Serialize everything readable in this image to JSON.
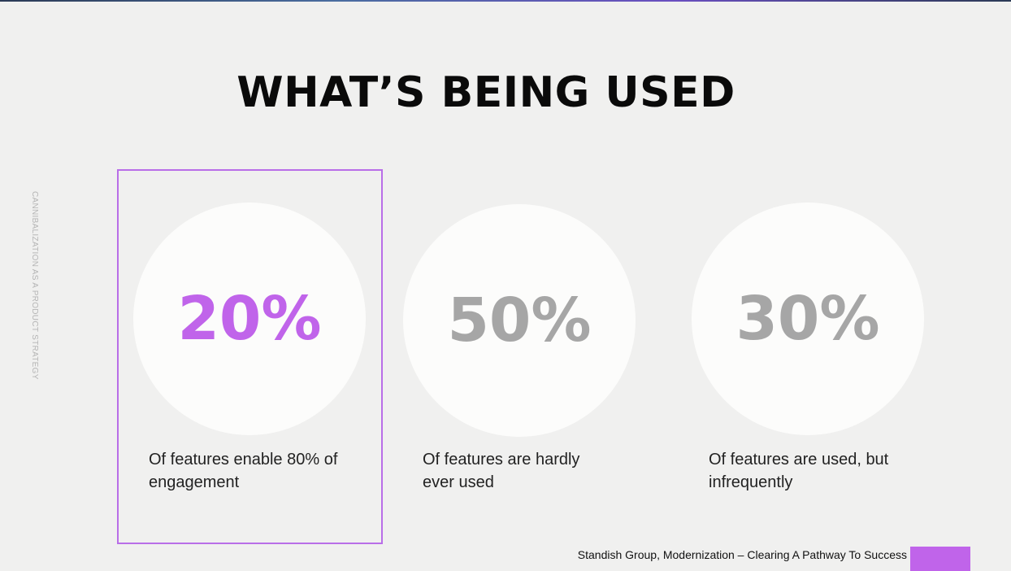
{
  "header": {
    "title": "WHAT’S BEING USED"
  },
  "side_label": "CANNIBALIZATION AS A PRODUCT STRATEGY",
  "cards": [
    {
      "value": "20%",
      "lines": [
        "Of features enable 80% of",
        "engagement"
      ]
    },
    {
      "value": "50%",
      "lines": [
        "Of features are hardly",
        "ever used"
      ]
    },
    {
      "value": "30%",
      "lines": [
        "Of features are used, but",
        "infrequently"
      ]
    }
  ],
  "footer": {
    "source": "Standish Group, Modernization – Clearing A Pathway To Success"
  }
}
